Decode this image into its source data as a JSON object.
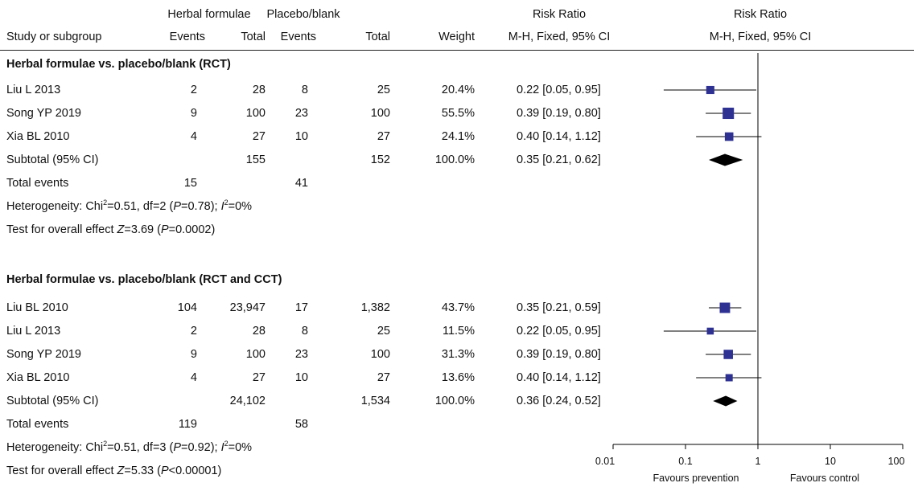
{
  "headers": {
    "group_a": "Herbal formulae",
    "group_b": "Placebo/blank",
    "rr_1": "Risk Ratio",
    "rr_2": "Risk Ratio",
    "study": "Study or subgroup",
    "events_a": "Events",
    "total_a": "Total",
    "events_b": "Events",
    "total_b": "Total",
    "weight": "Weight",
    "method_1": "M-H, Fixed, 95% CI",
    "method_2": "M-H, Fixed, 95% CI"
  },
  "section1": {
    "title": "Herbal formulae vs. placebo/blank (RCT)",
    "rows": [
      {
        "study": "Liu L 2013",
        "ea": "2",
        "ta": "28",
        "eb": "8",
        "tb": "25",
        "weight": "20.4%",
        "ci": "0.22 [0.05, 0.95]"
      },
      {
        "study": "Song YP 2019",
        "ea": "9",
        "ta": "100",
        "eb": "23",
        "tb": "100",
        "weight": "55.5%",
        "ci": "0.39 [0.19, 0.80]"
      },
      {
        "study": "Xia BL 2010",
        "ea": "4",
        "ta": "27",
        "eb": "10",
        "tb": "27",
        "weight": "24.1%",
        "ci": "0.40 [0.14, 1.12]"
      }
    ],
    "subtotal": {
      "label": "Subtotal (95% CI)",
      "ta": "155",
      "tb": "152",
      "weight": "100.0%",
      "ci": "0.35 [0.21, 0.62]"
    },
    "total_events": {
      "label": "Total events",
      "ea": "15",
      "eb": "41"
    },
    "heterogeneity": {
      "pre": "Heterogeneity: Chi",
      "sup1": "2",
      "mid": "=0.51, df=2 (",
      "p": "P",
      "pval": "=0.78); ",
      "i": "I",
      "sup2": "2",
      "post": "=0%"
    },
    "overall": {
      "pre": "Test for overall effect ",
      "z": "Z",
      "zval": "=3.69 (",
      "p": "P",
      "pval": "=0.0002)"
    }
  },
  "section2": {
    "title": "Herbal formulae vs. placebo/blank (RCT and CCT)",
    "rows": [
      {
        "study": "Liu BL 2010",
        "ea": "104",
        "ta": "23,947",
        "eb": "17",
        "tb": "1,382",
        "weight": "43.7%",
        "ci": "0.35 [0.21, 0.59]"
      },
      {
        "study": "Liu L 2013",
        "ea": "2",
        "ta": "28",
        "eb": "8",
        "tb": "25",
        "weight": "11.5%",
        "ci": "0.22 [0.05, 0.95]"
      },
      {
        "study": "Song YP 2019",
        "ea": "9",
        "ta": "100",
        "eb": "23",
        "tb": "100",
        "weight": "31.3%",
        "ci": "0.39 [0.19, 0.80]"
      },
      {
        "study": "Xia BL 2010",
        "ea": "4",
        "ta": "27",
        "eb": "10",
        "tb": "27",
        "weight": "13.6%",
        "ci": "0.40 [0.14, 1.12]"
      }
    ],
    "subtotal": {
      "label": "Subtotal (95% CI)",
      "ta": "24,102",
      "tb": "1,534",
      "weight": "100.0%",
      "ci": "0.36 [0.24, 0.52]"
    },
    "total_events": {
      "label": "Total events",
      "ea": "119",
      "eb": "58"
    },
    "heterogeneity": {
      "pre": "Heterogeneity: Chi",
      "sup1": "2",
      "mid": "=0.51, df=3 (",
      "p": "P",
      "pval": "=0.92); ",
      "i": "I",
      "sup2": "2",
      "post": "=0%"
    },
    "overall": {
      "pre": "Test for overall effect ",
      "z": "Z",
      "zval": "=5.33 (",
      "p": "P",
      "pval": "<0.00001)"
    }
  },
  "axis": {
    "ticks": [
      "0.01",
      "0.1",
      "1",
      "10",
      "100"
    ],
    "favours_left": "Favours prevention",
    "favours_right": "Favours control"
  },
  "chart_data": {
    "type": "forest",
    "scale": "log",
    "xlim": [
      0.01,
      100
    ],
    "null_line": 1,
    "colors": {
      "study_marker": "#2e3192",
      "summary": "#000000",
      "lines": "#000000"
    },
    "groups": [
      {
        "title": "Herbal formulae vs. placebo/blank (RCT)",
        "studies": [
          {
            "name": "Liu L 2013",
            "rr": 0.22,
            "lo": 0.05,
            "hi": 0.95,
            "weight": 20.4
          },
          {
            "name": "Song YP 2019",
            "rr": 0.39,
            "lo": 0.19,
            "hi": 0.8,
            "weight": 55.5
          },
          {
            "name": "Xia BL 2010",
            "rr": 0.4,
            "lo": 0.14,
            "hi": 1.12,
            "weight": 24.1
          }
        ],
        "summary": {
          "rr": 0.35,
          "lo": 0.21,
          "hi": 0.62
        }
      },
      {
        "title": "Herbal formulae vs. placebo/blank (RCT and CCT)",
        "studies": [
          {
            "name": "Liu BL 2010",
            "rr": 0.35,
            "lo": 0.21,
            "hi": 0.59,
            "weight": 43.7
          },
          {
            "name": "Liu L 2013",
            "rr": 0.22,
            "lo": 0.05,
            "hi": 0.95,
            "weight": 11.5
          },
          {
            "name": "Song YP 2019",
            "rr": 0.39,
            "lo": 0.19,
            "hi": 0.8,
            "weight": 31.3
          },
          {
            "name": "Xia BL 2010",
            "rr": 0.4,
            "lo": 0.14,
            "hi": 1.12,
            "weight": 13.6
          }
        ],
        "summary": {
          "rr": 0.36,
          "lo": 0.24,
          "hi": 0.52
        }
      }
    ]
  }
}
